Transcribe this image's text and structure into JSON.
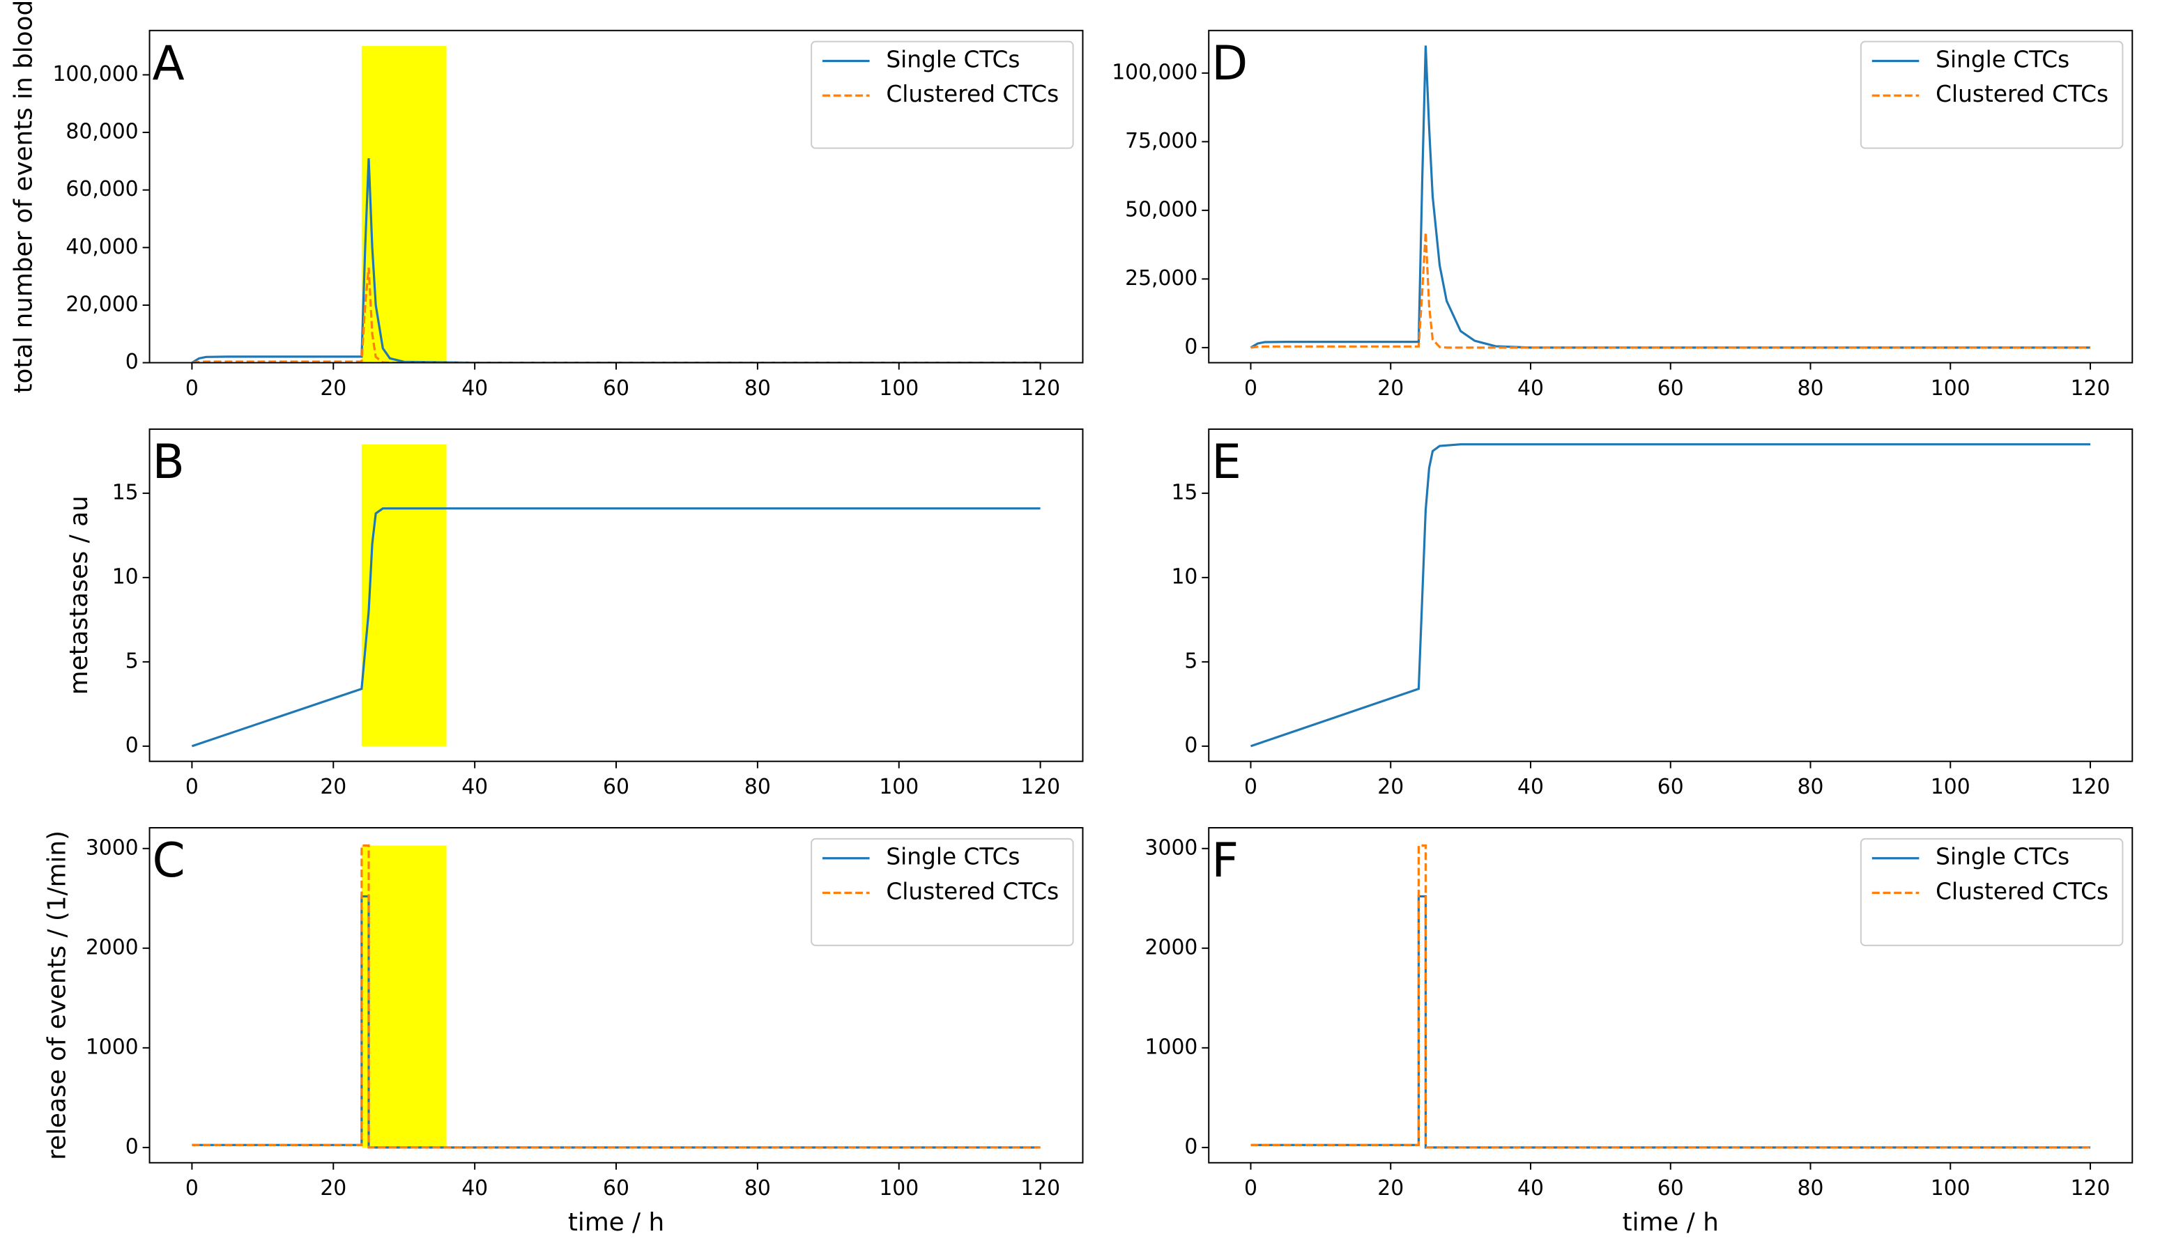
{
  "chart_data": [
    {
      "type": "line",
      "label": "A",
      "ylabel": "total number of events in blood",
      "x": [
        0,
        1,
        2,
        5,
        10,
        20,
        24,
        24.5,
        25,
        25.5,
        26,
        27,
        28,
        30,
        40,
        60,
        80,
        100,
        120
      ],
      "series": [
        {
          "name": "Single CTCs",
          "color": "#1f77b4",
          "linestyle": "solid",
          "values": [
            0,
            1500,
            2000,
            2100,
            2100,
            2100,
            2100,
            40000,
            71000,
            40000,
            20000,
            5000,
            1500,
            300,
            0,
            0,
            0,
            0,
            0
          ]
        },
        {
          "name": "Clustered CTCs",
          "color": "#ff7f0e",
          "linestyle": "dashed",
          "values": [
            0,
            300,
            400,
            400,
            400,
            400,
            400,
            20000,
            33000,
            10000,
            2000,
            100,
            0,
            0,
            0,
            0,
            0,
            0,
            0
          ]
        }
      ],
      "highlight": {
        "x0": 24,
        "x1": 36,
        "y0": 0,
        "y1": 110000,
        "color": "#ffff00"
      },
      "xlim": [
        -6,
        126
      ],
      "xticks": [
        0,
        20,
        40,
        60,
        80,
        100,
        120
      ],
      "ylim": [
        0,
        115400
      ],
      "yticks": [
        0,
        {
          "value": 20000,
          "label": "20,000"
        },
        {
          "value": 40000,
          "label": "40,000"
        },
        {
          "value": 60000,
          "label": "60,000"
        },
        {
          "value": 80000,
          "label": "80,000"
        },
        {
          "value": 100000,
          "label": "100,000"
        }
      ],
      "legend": "upper right"
    },
    {
      "type": "line",
      "label": "B",
      "ylabel": "metastases / au",
      "x": [
        0,
        24,
        25,
        25.5,
        26,
        27,
        30,
        60,
        120
      ],
      "series": [
        {
          "name": "Single CTCs",
          "color": "#1f77b4",
          "linestyle": "solid",
          "values": [
            0,
            3.4,
            8,
            12,
            13.8,
            14.1,
            14.1,
            14.1,
            14.1
          ]
        }
      ],
      "highlight": {
        "x0": 24,
        "x1": 36,
        "y0": 0,
        "y1": 17.9,
        "color": "#ffff00"
      },
      "xlim": [
        -6,
        126
      ],
      "xticks": [
        0,
        20,
        40,
        60,
        80,
        100,
        120
      ],
      "ylim": [
        -0.9,
        18.8
      ],
      "yticks": [
        0,
        5,
        10,
        15
      ]
    },
    {
      "type": "line",
      "label": "C",
      "ylabel": "release of events / (1/min)",
      "xlabel": "time / h",
      "x": [
        0,
        24,
        24,
        25,
        25,
        120
      ],
      "series": [
        {
          "name": "Single CTCs",
          "color": "#1f77b4",
          "linestyle": "solid",
          "values": [
            25,
            25,
            2520,
            2520,
            0,
            0
          ]
        },
        {
          "name": "Clustered CTCs",
          "color": "#ff7f0e",
          "linestyle": "dashed",
          "values": [
            25,
            25,
            3030,
            3030,
            0,
            0
          ]
        }
      ],
      "highlight": {
        "x0": 24,
        "x1": 36,
        "y0": 0,
        "y1": 3030,
        "color": "#ffff00"
      },
      "xlim": [
        -6,
        126
      ],
      "xticks": [
        0,
        20,
        40,
        60,
        80,
        100,
        120
      ],
      "ylim": [
        -153,
        3208
      ],
      "yticks": [
        0,
        1000,
        2000,
        3000
      ],
      "legend": "upper right"
    },
    {
      "type": "line",
      "label": "D",
      "x": [
        0,
        1,
        2,
        5,
        10,
        20,
        24,
        24.5,
        25,
        25.5,
        26,
        27,
        28,
        30,
        32,
        35,
        40,
        60,
        80,
        100,
        120
      ],
      "series": [
        {
          "name": "Single CTCs",
          "color": "#1f77b4",
          "linestyle": "solid",
          "values": [
            0,
            1500,
            2000,
            2100,
            2100,
            2100,
            2100,
            60000,
            110000,
            80000,
            55000,
            30000,
            17000,
            6000,
            2500,
            500,
            0,
            0,
            0,
            0,
            0
          ]
        },
        {
          "name": "Clustered CTCs",
          "color": "#ff7f0e",
          "linestyle": "dashed",
          "values": [
            0,
            300,
            400,
            400,
            400,
            400,
            400,
            20000,
            42000,
            15000,
            3000,
            200,
            0,
            0,
            0,
            0,
            0,
            0,
            0,
            0,
            0
          ]
        }
      ],
      "xlim": [
        -6,
        126
      ],
      "xticks": [
        0,
        20,
        40,
        60,
        80,
        100,
        120
      ],
      "ylim": [
        -5500,
        115500
      ],
      "yticks": [
        0,
        {
          "value": 25000,
          "label": "25,000"
        },
        {
          "value": 50000,
          "label": "50,000"
        },
        {
          "value": 75000,
          "label": "75,000"
        },
        {
          "value": 100000,
          "label": "100,000"
        }
      ],
      "legend": "upper right"
    },
    {
      "type": "line",
      "label": "E",
      "x": [
        0,
        24,
        25,
        25.5,
        26,
        27,
        30,
        60,
        120
      ],
      "series": [
        {
          "name": "Single CTCs",
          "color": "#1f77b4",
          "linestyle": "solid",
          "values": [
            0,
            3.4,
            14,
            16.5,
            17.5,
            17.8,
            17.9,
            17.9,
            17.9
          ]
        }
      ],
      "xlim": [
        -6,
        126
      ],
      "xticks": [
        0,
        20,
        40,
        60,
        80,
        100,
        120
      ],
      "ylim": [
        -0.9,
        18.8
      ],
      "yticks": [
        0,
        5,
        10,
        15
      ]
    },
    {
      "type": "line",
      "label": "F",
      "xlabel": "time / h",
      "x": [
        0,
        24,
        24,
        25,
        25,
        120
      ],
      "series": [
        {
          "name": "Single CTCs",
          "color": "#1f77b4",
          "linestyle": "solid",
          "values": [
            25,
            25,
            2520,
            2520,
            0,
            0
          ]
        },
        {
          "name": "Clustered CTCs",
          "color": "#ff7f0e",
          "linestyle": "dashed",
          "values": [
            25,
            25,
            3030,
            3030,
            0,
            0
          ]
        }
      ],
      "xlim": [
        -6,
        126
      ],
      "xticks": [
        0,
        20,
        40,
        60,
        80,
        100,
        120
      ],
      "ylim": [
        -153,
        3208
      ],
      "yticks": [
        0,
        1000,
        2000,
        3000
      ],
      "legend": "upper right"
    }
  ]
}
